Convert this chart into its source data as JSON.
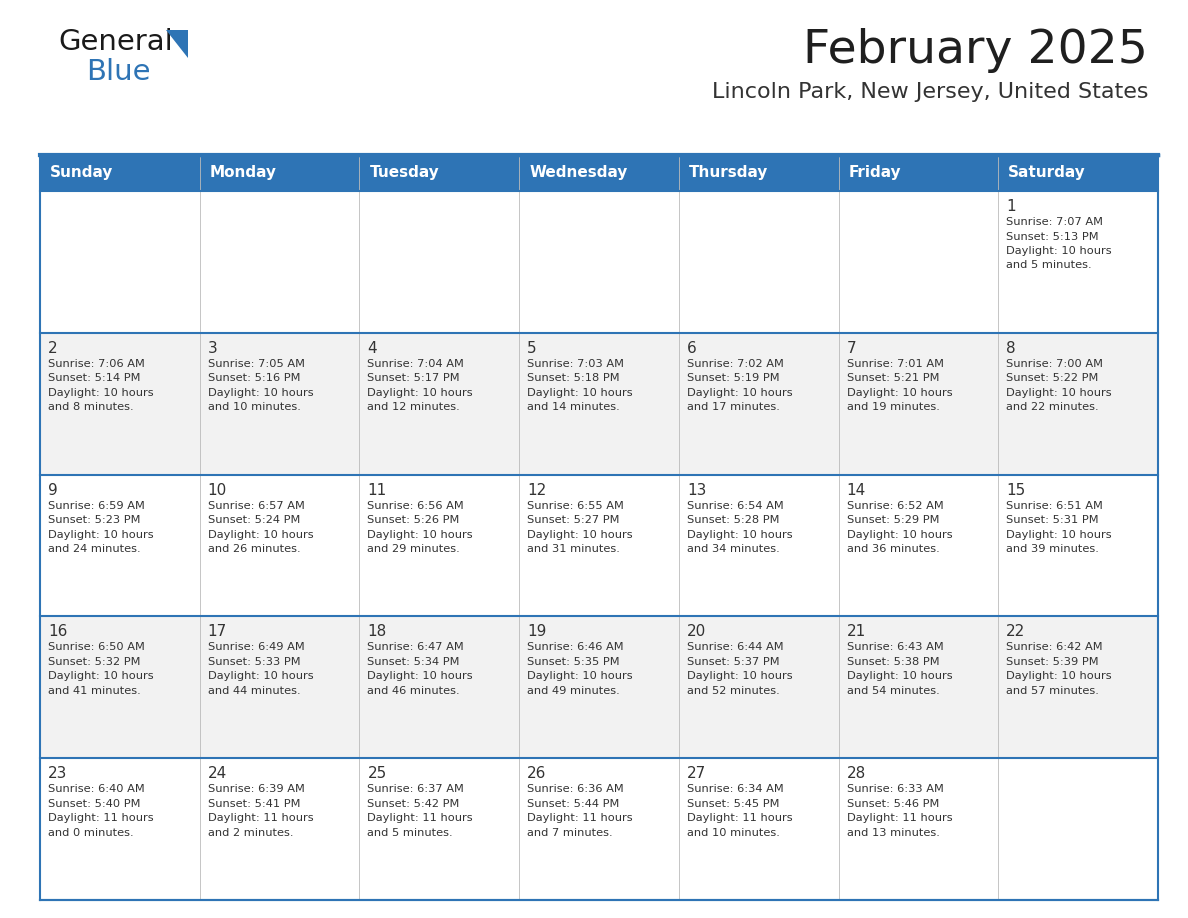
{
  "title": "February 2025",
  "subtitle": "Lincoln Park, New Jersey, United States",
  "header_bg": "#2E74B5",
  "header_text_color": "#FFFFFF",
  "cell_bg_light": "#F2F2F2",
  "cell_bg_white": "#FFFFFF",
  "border_color": "#2E74B5",
  "day_headers": [
    "Sunday",
    "Monday",
    "Tuesday",
    "Wednesday",
    "Thursday",
    "Friday",
    "Saturday"
  ],
  "title_color": "#1F1F1F",
  "subtitle_color": "#333333",
  "day_num_color": "#333333",
  "cell_text_color": "#333333",
  "logo_general_color": "#1A1A1A",
  "logo_blue_color": "#2E74B5",
  "logo_triangle_color": "#2E74B5",
  "calendar": [
    [
      null,
      null,
      null,
      null,
      null,
      null,
      {
        "day": 1,
        "sunrise": "7:07 AM",
        "sunset": "5:13 PM",
        "daylight": "10 hours and 5 minutes."
      }
    ],
    [
      {
        "day": 2,
        "sunrise": "7:06 AM",
        "sunset": "5:14 PM",
        "daylight": "10 hours and 8 minutes."
      },
      {
        "day": 3,
        "sunrise": "7:05 AM",
        "sunset": "5:16 PM",
        "daylight": "10 hours and 10 minutes."
      },
      {
        "day": 4,
        "sunrise": "7:04 AM",
        "sunset": "5:17 PM",
        "daylight": "10 hours and 12 minutes."
      },
      {
        "day": 5,
        "sunrise": "7:03 AM",
        "sunset": "5:18 PM",
        "daylight": "10 hours and 14 minutes."
      },
      {
        "day": 6,
        "sunrise": "7:02 AM",
        "sunset": "5:19 PM",
        "daylight": "10 hours and 17 minutes."
      },
      {
        "day": 7,
        "sunrise": "7:01 AM",
        "sunset": "5:21 PM",
        "daylight": "10 hours and 19 minutes."
      },
      {
        "day": 8,
        "sunrise": "7:00 AM",
        "sunset": "5:22 PM",
        "daylight": "10 hours and 22 minutes."
      }
    ],
    [
      {
        "day": 9,
        "sunrise": "6:59 AM",
        "sunset": "5:23 PM",
        "daylight": "10 hours and 24 minutes."
      },
      {
        "day": 10,
        "sunrise": "6:57 AM",
        "sunset": "5:24 PM",
        "daylight": "10 hours and 26 minutes."
      },
      {
        "day": 11,
        "sunrise": "6:56 AM",
        "sunset": "5:26 PM",
        "daylight": "10 hours and 29 minutes."
      },
      {
        "day": 12,
        "sunrise": "6:55 AM",
        "sunset": "5:27 PM",
        "daylight": "10 hours and 31 minutes."
      },
      {
        "day": 13,
        "sunrise": "6:54 AM",
        "sunset": "5:28 PM",
        "daylight": "10 hours and 34 minutes."
      },
      {
        "day": 14,
        "sunrise": "6:52 AM",
        "sunset": "5:29 PM",
        "daylight": "10 hours and 36 minutes."
      },
      {
        "day": 15,
        "sunrise": "6:51 AM",
        "sunset": "5:31 PM",
        "daylight": "10 hours and 39 minutes."
      }
    ],
    [
      {
        "day": 16,
        "sunrise": "6:50 AM",
        "sunset": "5:32 PM",
        "daylight": "10 hours and 41 minutes."
      },
      {
        "day": 17,
        "sunrise": "6:49 AM",
        "sunset": "5:33 PM",
        "daylight": "10 hours and 44 minutes."
      },
      {
        "day": 18,
        "sunrise": "6:47 AM",
        "sunset": "5:34 PM",
        "daylight": "10 hours and 46 minutes."
      },
      {
        "day": 19,
        "sunrise": "6:46 AM",
        "sunset": "5:35 PM",
        "daylight": "10 hours and 49 minutes."
      },
      {
        "day": 20,
        "sunrise": "6:44 AM",
        "sunset": "5:37 PM",
        "daylight": "10 hours and 52 minutes."
      },
      {
        "day": 21,
        "sunrise": "6:43 AM",
        "sunset": "5:38 PM",
        "daylight": "10 hours and 54 minutes."
      },
      {
        "day": 22,
        "sunrise": "6:42 AM",
        "sunset": "5:39 PM",
        "daylight": "10 hours and 57 minutes."
      }
    ],
    [
      {
        "day": 23,
        "sunrise": "6:40 AM",
        "sunset": "5:40 PM",
        "daylight": "11 hours and 0 minutes."
      },
      {
        "day": 24,
        "sunrise": "6:39 AM",
        "sunset": "5:41 PM",
        "daylight": "11 hours and 2 minutes."
      },
      {
        "day": 25,
        "sunrise": "6:37 AM",
        "sunset": "5:42 PM",
        "daylight": "11 hours and 5 minutes."
      },
      {
        "day": 26,
        "sunrise": "6:36 AM",
        "sunset": "5:44 PM",
        "daylight": "11 hours and 7 minutes."
      },
      {
        "day": 27,
        "sunrise": "6:34 AM",
        "sunset": "5:45 PM",
        "daylight": "11 hours and 10 minutes."
      },
      {
        "day": 28,
        "sunrise": "6:33 AM",
        "sunset": "5:46 PM",
        "daylight": "11 hours and 13 minutes."
      },
      null
    ]
  ],
  "row_backgrounds": [
    "#FFFFFF",
    "#F2F2F2",
    "#FFFFFF",
    "#F2F2F2",
    "#FFFFFF"
  ]
}
